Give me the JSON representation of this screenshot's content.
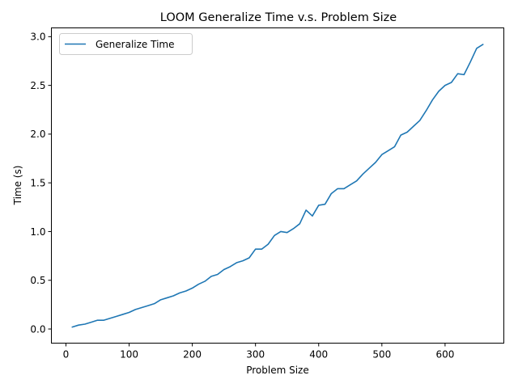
{
  "chart_data": {
    "type": "line",
    "title": "LOOM Generalize Time v.s. Problem Size",
    "xlabel": "Problem Size",
    "ylabel": "Time (s)",
    "xlim": [
      -23,
      693
    ],
    "ylim": [
      -0.145,
      3.09
    ],
    "xticks": [
      0,
      100,
      200,
      300,
      400,
      500,
      600
    ],
    "yticks": [
      0.0,
      0.5,
      1.0,
      1.5,
      2.0,
      2.5,
      3.0
    ],
    "xtick_labels": [
      "0",
      "100",
      "200",
      "300",
      "400",
      "500",
      "600"
    ],
    "ytick_labels": [
      "0.0",
      "0.5",
      "1.0",
      "1.5",
      "2.0",
      "2.5",
      "3.0"
    ],
    "grid": false,
    "legend_position": "upper-left",
    "series": [
      {
        "name": "Generalize Time",
        "color": "#1f77b4",
        "x": [
          10,
          20,
          30,
          40,
          50,
          60,
          70,
          80,
          90,
          100,
          110,
          120,
          130,
          140,
          150,
          160,
          170,
          180,
          190,
          200,
          210,
          220,
          230,
          240,
          250,
          260,
          270,
          280,
          290,
          300,
          310,
          320,
          330,
          340,
          350,
          360,
          370,
          380,
          390,
          400,
          410,
          420,
          430,
          440,
          450,
          460,
          470,
          480,
          490,
          500,
          510,
          520,
          530,
          540,
          550,
          560,
          570,
          580,
          590,
          600,
          610,
          620,
          630,
          640,
          650,
          660
        ],
        "y": [
          0.02,
          0.04,
          0.05,
          0.07,
          0.09,
          0.09,
          0.11,
          0.13,
          0.15,
          0.17,
          0.2,
          0.22,
          0.24,
          0.26,
          0.3,
          0.32,
          0.34,
          0.37,
          0.39,
          0.42,
          0.46,
          0.49,
          0.54,
          0.56,
          0.61,
          0.64,
          0.68,
          0.7,
          0.73,
          0.82,
          0.82,
          0.87,
          0.96,
          1.0,
          0.99,
          1.03,
          1.08,
          1.22,
          1.16,
          1.27,
          1.28,
          1.39,
          1.44,
          1.44,
          1.48,
          1.52,
          1.59,
          1.65,
          1.71,
          1.79,
          1.83,
          1.87,
          1.99,
          2.02,
          2.08,
          2.14,
          2.24,
          2.35,
          2.44,
          2.5,
          2.53,
          2.62,
          2.61,
          2.74,
          2.88,
          2.92
        ]
      }
    ]
  }
}
